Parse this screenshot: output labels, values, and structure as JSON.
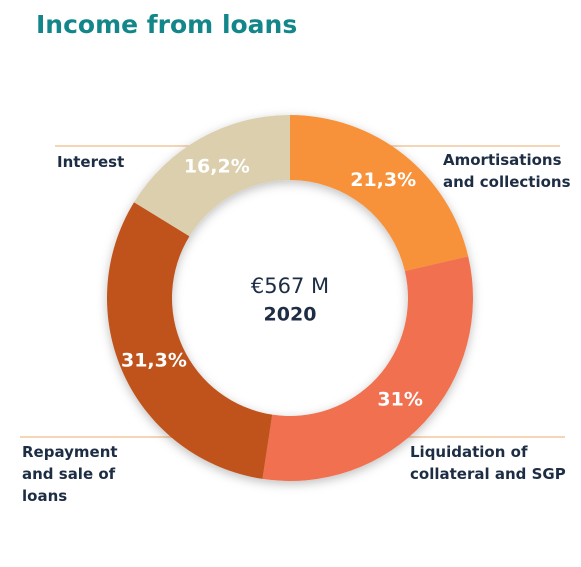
{
  "chart_data": {
    "type": "donut",
    "title": "Income from loans",
    "center_text": "€567 M",
    "center_subtext": "2020",
    "categories": [
      "Amortisations and collections",
      "Liquidation of collateral and SGP",
      "Repayment and sale of loans",
      "Interest"
    ],
    "values": [
      21.3,
      31,
      31.3,
      16.2
    ],
    "value_labels": [
      "21,3%",
      "31%",
      "31,3%",
      "16,2%"
    ],
    "colors": [
      "#f7923a",
      "#f07050",
      "#c0531c",
      "#dccfae"
    ]
  }
}
